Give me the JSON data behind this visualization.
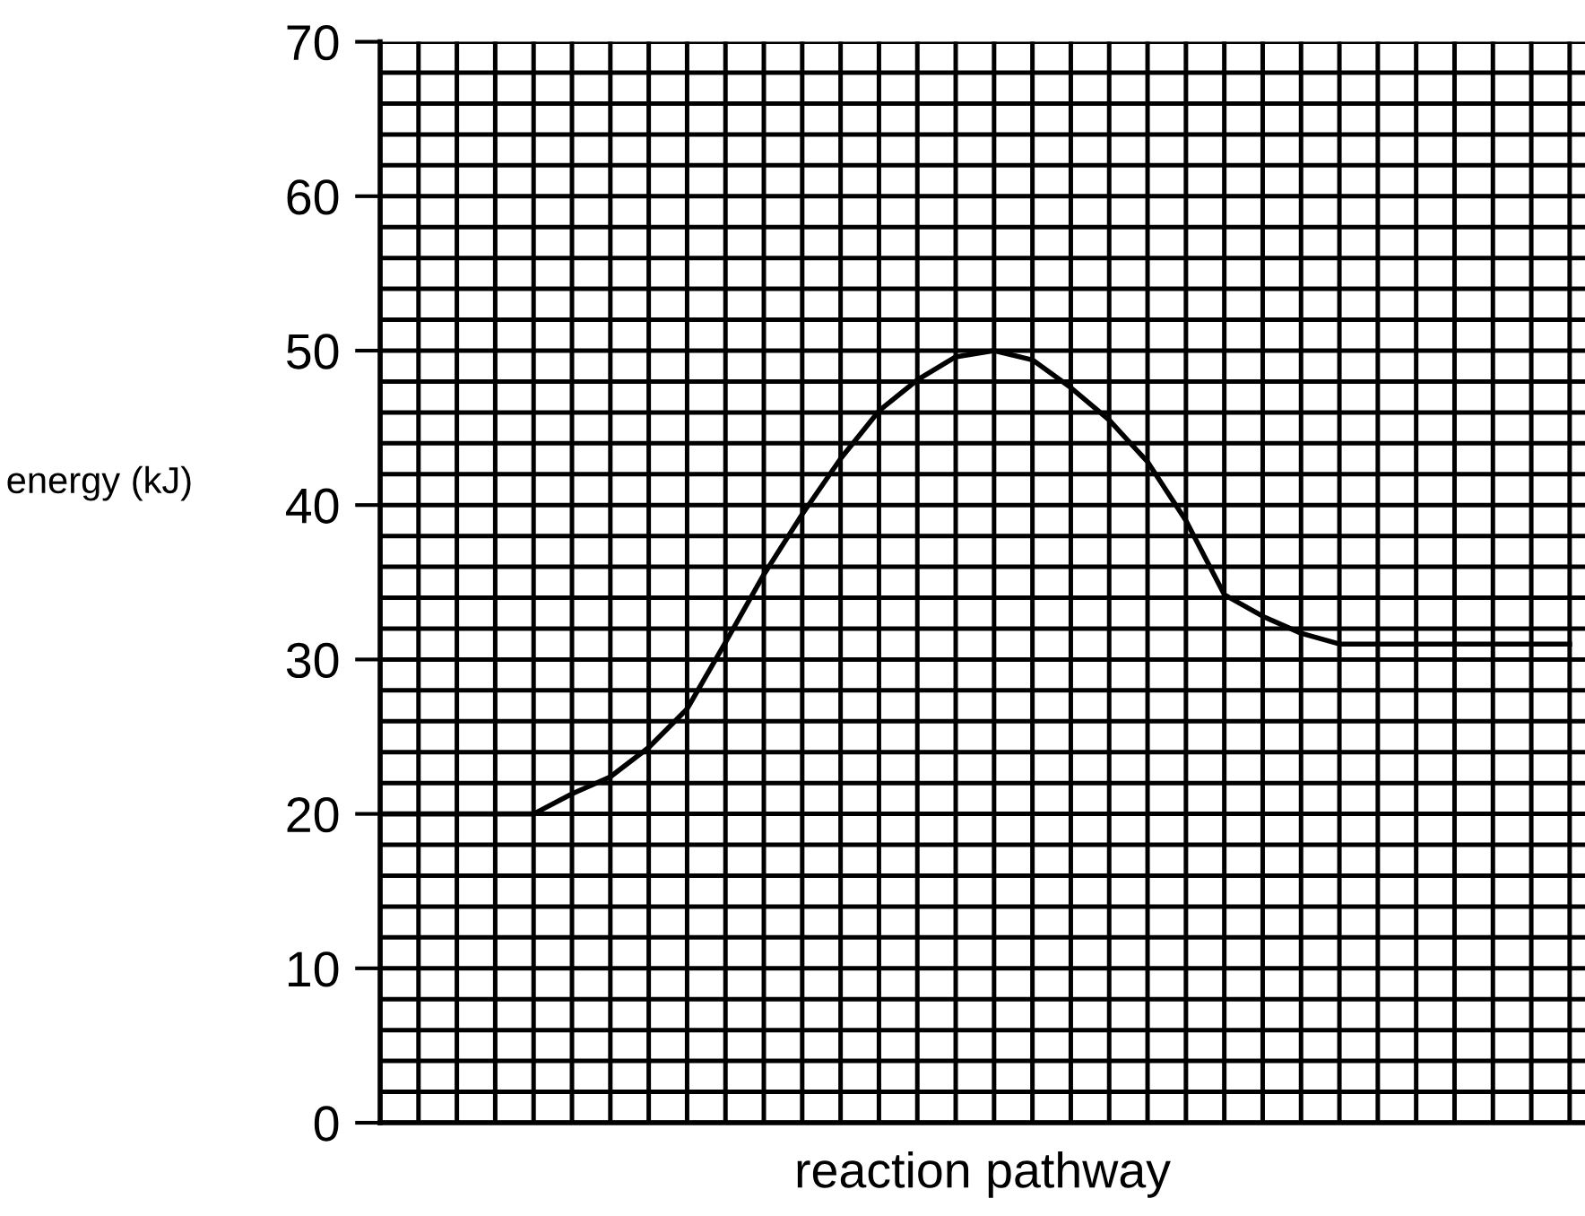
{
  "chart_data": {
    "type": "line",
    "xlabel": "reaction pathway",
    "ylabel": "energy (kJ)",
    "categories": [
      null,
      null,
      null,
      null,
      null,
      null,
      null,
      null,
      null,
      null,
      null,
      null,
      null,
      null,
      null,
      null,
      null,
      null,
      null,
      null,
      null,
      null,
      null,
      null,
      null,
      null,
      null,
      null,
      null,
      null,
      null,
      null
    ],
    "series": [
      {
        "color": "#000000",
        "values": [
          20,
          20,
          20,
          20,
          20,
          21.3,
          22.4,
          24.3,
          26.8,
          31.1,
          35.5,
          39.4,
          43.0,
          46.1,
          48.1,
          49.6,
          50,
          49.4,
          47.6,
          45.5,
          42.8,
          39.0,
          34.2,
          32.8,
          31.7,
          31.0,
          31,
          31,
          31,
          31,
          31,
          31
        ]
      }
    ],
    "ylim": [
      0,
      70
    ],
    "yticks": [
      0,
      {
        "value": 2,
        "label": null
      },
      {
        "value": 4,
        "label": null
      },
      {
        "value": 6,
        "label": null
      },
      {
        "value": 8,
        "label": null
      },
      10,
      {
        "value": 12,
        "label": null
      },
      {
        "value": 14,
        "label": null
      },
      {
        "value": 16,
        "label": null
      },
      {
        "value": 18,
        "label": null
      },
      20,
      {
        "value": 22,
        "label": null
      },
      {
        "value": 24,
        "label": null
      },
      {
        "value": 26,
        "label": null
      },
      {
        "value": 28,
        "label": null
      },
      30,
      {
        "value": 32,
        "label": null
      },
      {
        "value": 34,
        "label": null
      },
      {
        "value": 36,
        "label": null
      },
      {
        "value": 38,
        "label": null
      },
      40,
      {
        "value": 42,
        "label": null
      },
      {
        "value": 44,
        "label": null
      },
      {
        "value": 46,
        "label": null
      },
      {
        "value": 48,
        "label": null
      },
      50,
      {
        "value": 52,
        "label": null
      },
      {
        "value": 54,
        "label": null
      },
      {
        "value": 56,
        "label": null
      },
      {
        "value": 58,
        "label": null
      },
      60,
      {
        "value": 62,
        "label": null
      },
      {
        "value": 64,
        "label": null
      },
      {
        "value": 66,
        "label": null
      },
      {
        "value": 68,
        "label": null
      },
      70
    ],
    "grid": true,
    "marker": "none",
    "line_style": "solid"
  }
}
